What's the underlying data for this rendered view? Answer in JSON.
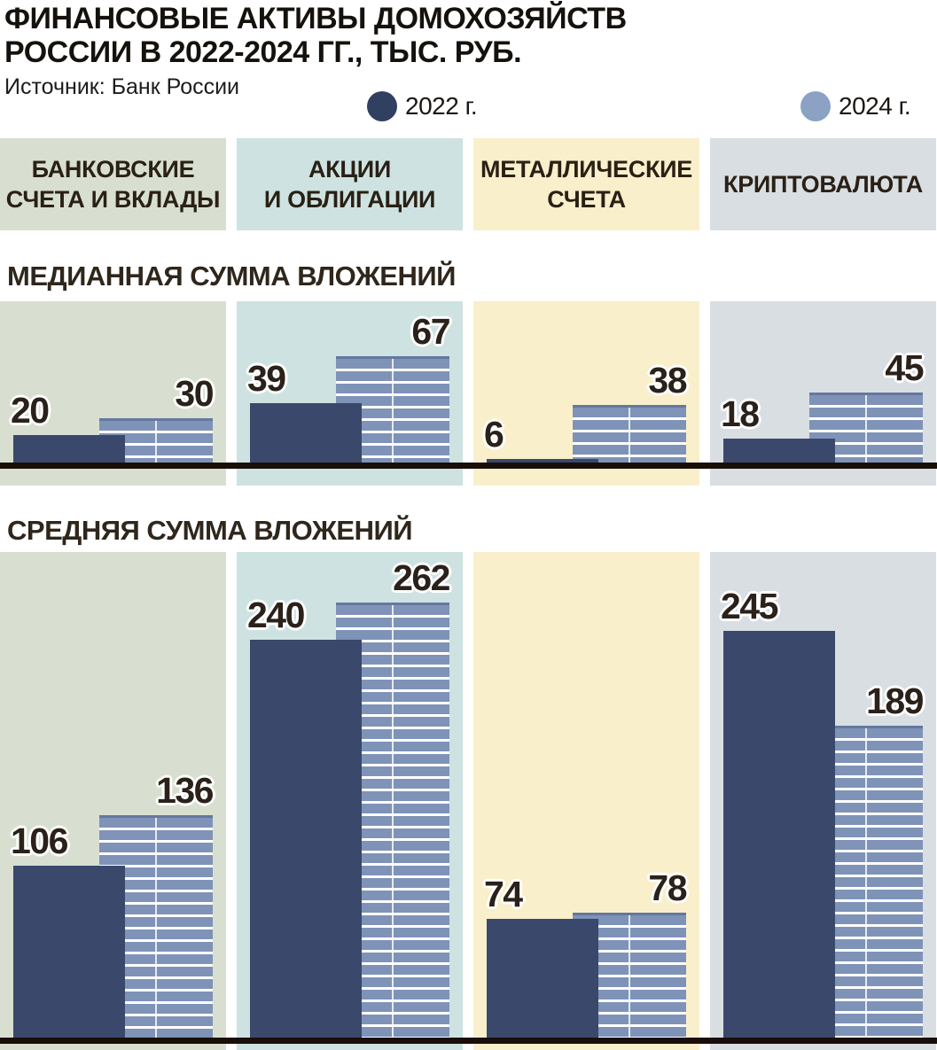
{
  "title_line1": "ФИНАНСОВЫЕ АКТИВЫ ДОМОХОЗЯЙСТВ",
  "title_line2": "РОССИИ В 2022-2024 ГГ., ТЫС. РУБ.",
  "source": "Источник: Банк России",
  "legend": {
    "y2022": {
      "label": "2022 г.",
      "color": "#313f60"
    },
    "y2024": {
      "label": "2024 г.",
      "color": "#8ba2c5"
    }
  },
  "categories": [
    {
      "label_lines": [
        "БАНКОВСКИЕ",
        "СЧЕТА И ВКЛАДЫ"
      ],
      "bg": "#d8dfd0"
    },
    {
      "label_lines": [
        "АКЦИИ",
        "И ОБЛИГАЦИИ"
      ],
      "bg": "#cee3e1"
    },
    {
      "label_lines": [
        "МЕТАЛЛИЧЕСКИЕ",
        "СЧЕТА"
      ],
      "bg": "#faefcb"
    },
    {
      "label_lines": [
        "КРИПТОВАЛЮТА"
      ],
      "bg": "#d9dee3"
    }
  ],
  "colors": {
    "bar_2022": "#3a486c",
    "bar_2024": "#7e93b7",
    "bar_2024_top_edge": "#64789f",
    "stripe": "#ffffff",
    "baseline": "#190f08"
  },
  "chart_data": [
    {
      "type": "bar",
      "title": "МЕДИАННАЯ СУММА ВЛОЖЕНИЙ",
      "unit": "тыс. руб.",
      "categories": [
        "БАНКОВСКИЕ СЧЕТА И ВКЛАДЫ",
        "АКЦИИ И ОБЛИГАЦИИ",
        "МЕТАЛЛИЧЕСКИЕ СЧЕТА",
        "КРИПТОВАЛЮТА"
      ],
      "series": [
        {
          "name": "2022 г.",
          "values": [
            20,
            39,
            6,
            18
          ]
        },
        {
          "name": "2024 г.",
          "values": [
            30,
            67,
            38,
            45
          ]
        }
      ],
      "legend_position": "top",
      "grid": false,
      "value_labels": true
    },
    {
      "type": "bar",
      "title": "СРЕДНЯЯ СУММА ВЛОЖЕНИЙ",
      "unit": "тыс. руб.",
      "categories": [
        "БАНКОВСКИЕ СЧЕТА И ВКЛАДЫ",
        "АКЦИИ И ОБЛИГАЦИИ",
        "МЕТАЛЛИЧЕСКИЕ СЧЕТА",
        "КРИПТОВАЛЮТА"
      ],
      "series": [
        {
          "name": "2022 г.",
          "values": [
            106,
            240,
            74,
            245
          ]
        },
        {
          "name": "2024 г.",
          "values": [
            136,
            262,
            78,
            189
          ]
        }
      ],
      "legend_position": "top",
      "grid": false,
      "value_labels": true
    }
  ]
}
